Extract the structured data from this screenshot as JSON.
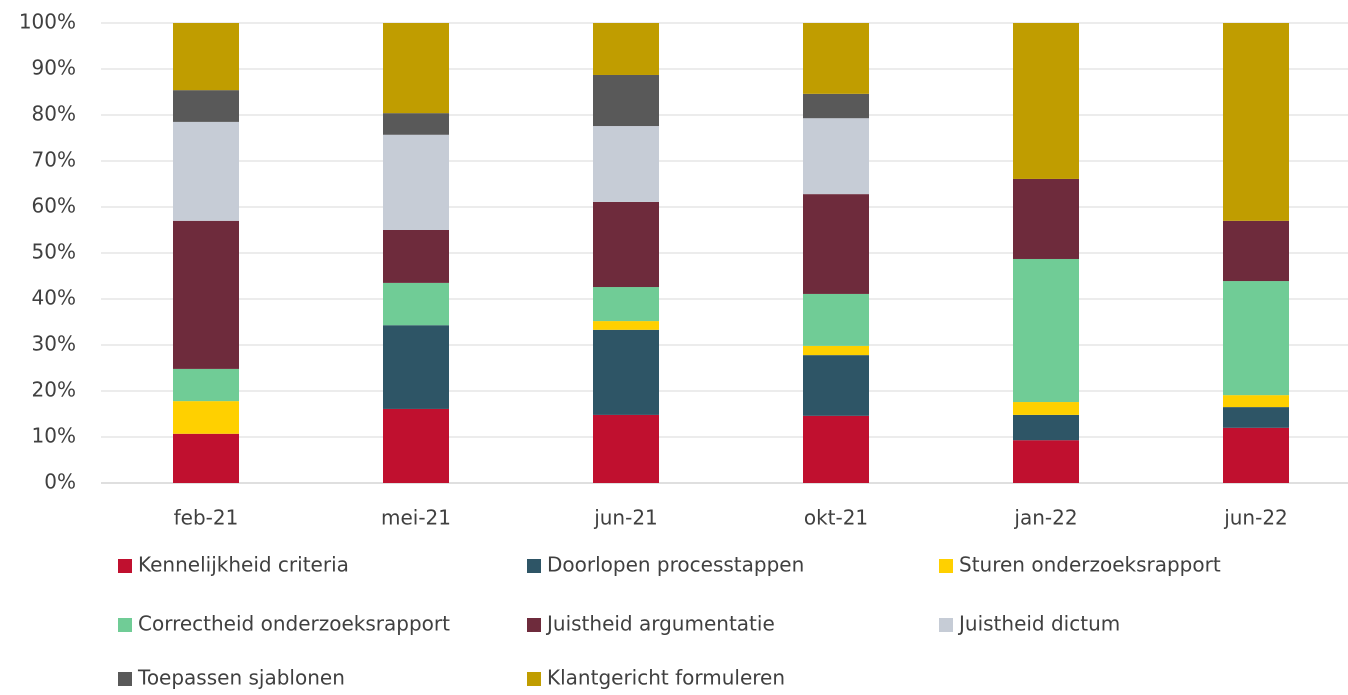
{
  "chart_data": {
    "type": "stacked_bar",
    "categories": [
      "feb-21",
      "mei-21",
      "jun-21",
      "okt-21",
      "jan-22",
      "jun-22"
    ],
    "series": [
      {
        "name": "Kennelijkheid criteria",
        "color": "#c0102f",
        "values": [
          10.7,
          16.1,
          14.8,
          14.6,
          9.3,
          12.0
        ]
      },
      {
        "name": "Doorlopen processtappen",
        "color": "#2e5566",
        "values": [
          0,
          18.2,
          18.5,
          13.2,
          5.5,
          4.5
        ]
      },
      {
        "name": "Sturen onderzoeksrapport",
        "color": "#ffd000",
        "values": [
          7.1,
          0,
          1.9,
          2.0,
          2.8,
          2.6
        ]
      },
      {
        "name": "Correctheid onderzoeksrapport",
        "color": "#70cc96",
        "values": [
          7.0,
          9.2,
          7.4,
          11.3,
          31.1,
          24.8
        ]
      },
      {
        "name": "Juistheid argumentatie",
        "color": "#6e2b3c",
        "values": [
          32.2,
          11.5,
          18.5,
          21.7,
          17.4,
          13.1
        ]
      },
      {
        "name": "Juistheid dictum",
        "color": "#c6ccd6",
        "values": [
          21.5,
          20.7,
          16.5,
          16.5,
          0,
          0
        ]
      },
      {
        "name": "Toepassen sjablonen",
        "color": "#595959",
        "values": [
          6.9,
          4.7,
          11.1,
          5.3,
          0,
          0
        ]
      },
      {
        "name": "Klantgericht formuleren",
        "color": "#c09d00",
        "values": [
          14.6,
          19.6,
          11.3,
          15.4,
          33.9,
          43.0
        ]
      }
    ],
    "ylim": [
      0,
      100
    ],
    "yticks": [
      {
        "value": 0,
        "label": "0%"
      },
      {
        "value": 10,
        "label": "10%"
      },
      {
        "value": 20,
        "label": "20%"
      },
      {
        "value": 30,
        "label": "30%"
      },
      {
        "value": 40,
        "label": "40%"
      },
      {
        "value": 50,
        "label": "50%"
      },
      {
        "value": 60,
        "label": "60%"
      },
      {
        "value": 70,
        "label": "70%"
      },
      {
        "value": 80,
        "label": "80%"
      },
      {
        "value": 90,
        "label": "90%"
      },
      {
        "value": 100,
        "label": "100%"
      }
    ],
    "grid": true,
    "legend": "bottom"
  }
}
